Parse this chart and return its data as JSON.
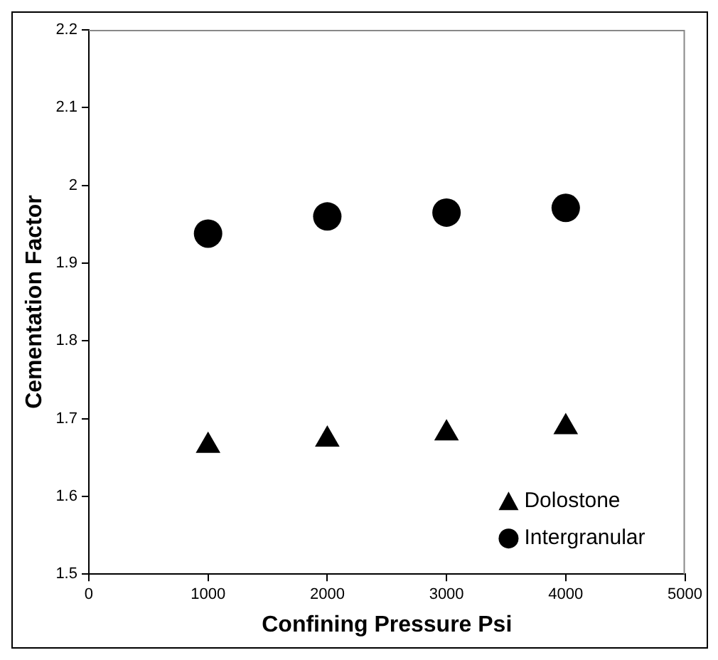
{
  "chart_data": {
    "type": "scatter",
    "xlabel": "Confining Pressure Psi",
    "ylabel": "Cementation Factor",
    "x": [
      1000,
      2000,
      3000,
      4000
    ],
    "series": [
      {
        "name": "Dolostone",
        "color": "#000000",
        "marker": "triangle",
        "values": [
          1.665,
          1.673,
          1.681,
          1.689
        ]
      },
      {
        "name": "Intergranular",
        "color": "#000000",
        "marker": "circle",
        "values": [
          1.938,
          1.96,
          1.965,
          1.971
        ]
      }
    ],
    "xlim": [
      0,
      5000
    ],
    "xticks": [
      0,
      1000,
      2000,
      3000,
      4000,
      5000
    ],
    "ylim": [
      1.5,
      2.2
    ],
    "yticks": [
      1.5,
      1.6,
      1.7,
      1.8,
      1.9,
      2,
      2.1,
      2.2
    ],
    "grid": false,
    "legend": "bottom right"
  }
}
